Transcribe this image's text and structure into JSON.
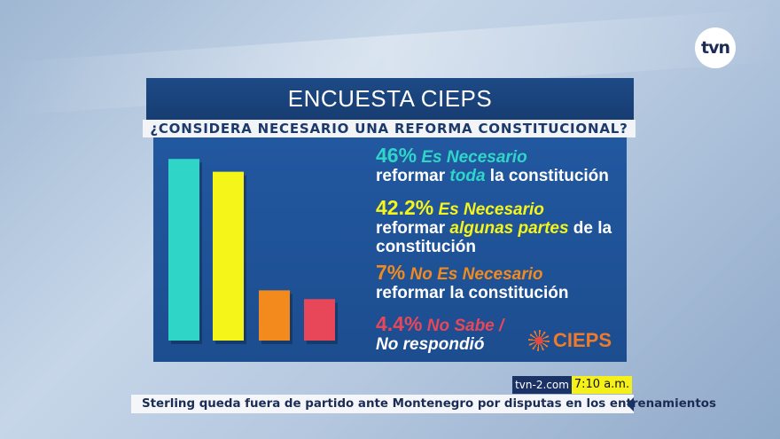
{
  "channel_logo": "tvn",
  "graphic": {
    "title": "ENCUESTA CIEPS",
    "question": "¿CONSIDERA NECESARIO UNA REFORMA CONSTITUCIONAL?",
    "source_logo": "CIEPS",
    "items": [
      {
        "pct": "46%",
        "head": "Es Necesario",
        "line2a": "reformar ",
        "line2b": "toda",
        "line2c": " la constitución",
        "line3": "",
        "color": "#2fd6c8"
      },
      {
        "pct": "42.2%",
        "head": "Es Necesario",
        "line2a": "reformar ",
        "line2b": "algunas partes",
        "line2c": " de la",
        "line3": "constitución",
        "color": "#f5f51a"
      },
      {
        "pct": "7%",
        "head": "No Es Necesario",
        "line2a": "reformar la constitución",
        "line2b": "",
        "line2c": "",
        "line3": "",
        "color": "#f28a1e"
      },
      {
        "pct": "4.4%",
        "head": "No Sabe /",
        "line2a": "No respondió",
        "line2b": "",
        "line2c": "",
        "line3": "",
        "color": "#e8475a"
      }
    ]
  },
  "chart_data": {
    "type": "bar",
    "title": "ENCUESTA CIEPS",
    "subtitle": "¿CONSIDERA NECESARIO UNA REFORMA CONSTITUCIONAL?",
    "categories": [
      "Es Necesario reformar toda la constitución",
      "Es Necesario reformar algunas partes de la constitución",
      "No Es Necesario reformar la constitución",
      "No Sabe / No respondió"
    ],
    "values": [
      46,
      42.2,
      7,
      4.4
    ],
    "unit": "%",
    "colors": [
      "#2fd6c8",
      "#f5f51a",
      "#f28a1e",
      "#e8475a"
    ],
    "grid": false,
    "legend": "right"
  },
  "ticker": {
    "site": "tvn-2.com",
    "time": "7:10 a.m.",
    "headline": "Sterling queda fuera de partido ante Montenegro por disputas en los entrenamientos"
  }
}
